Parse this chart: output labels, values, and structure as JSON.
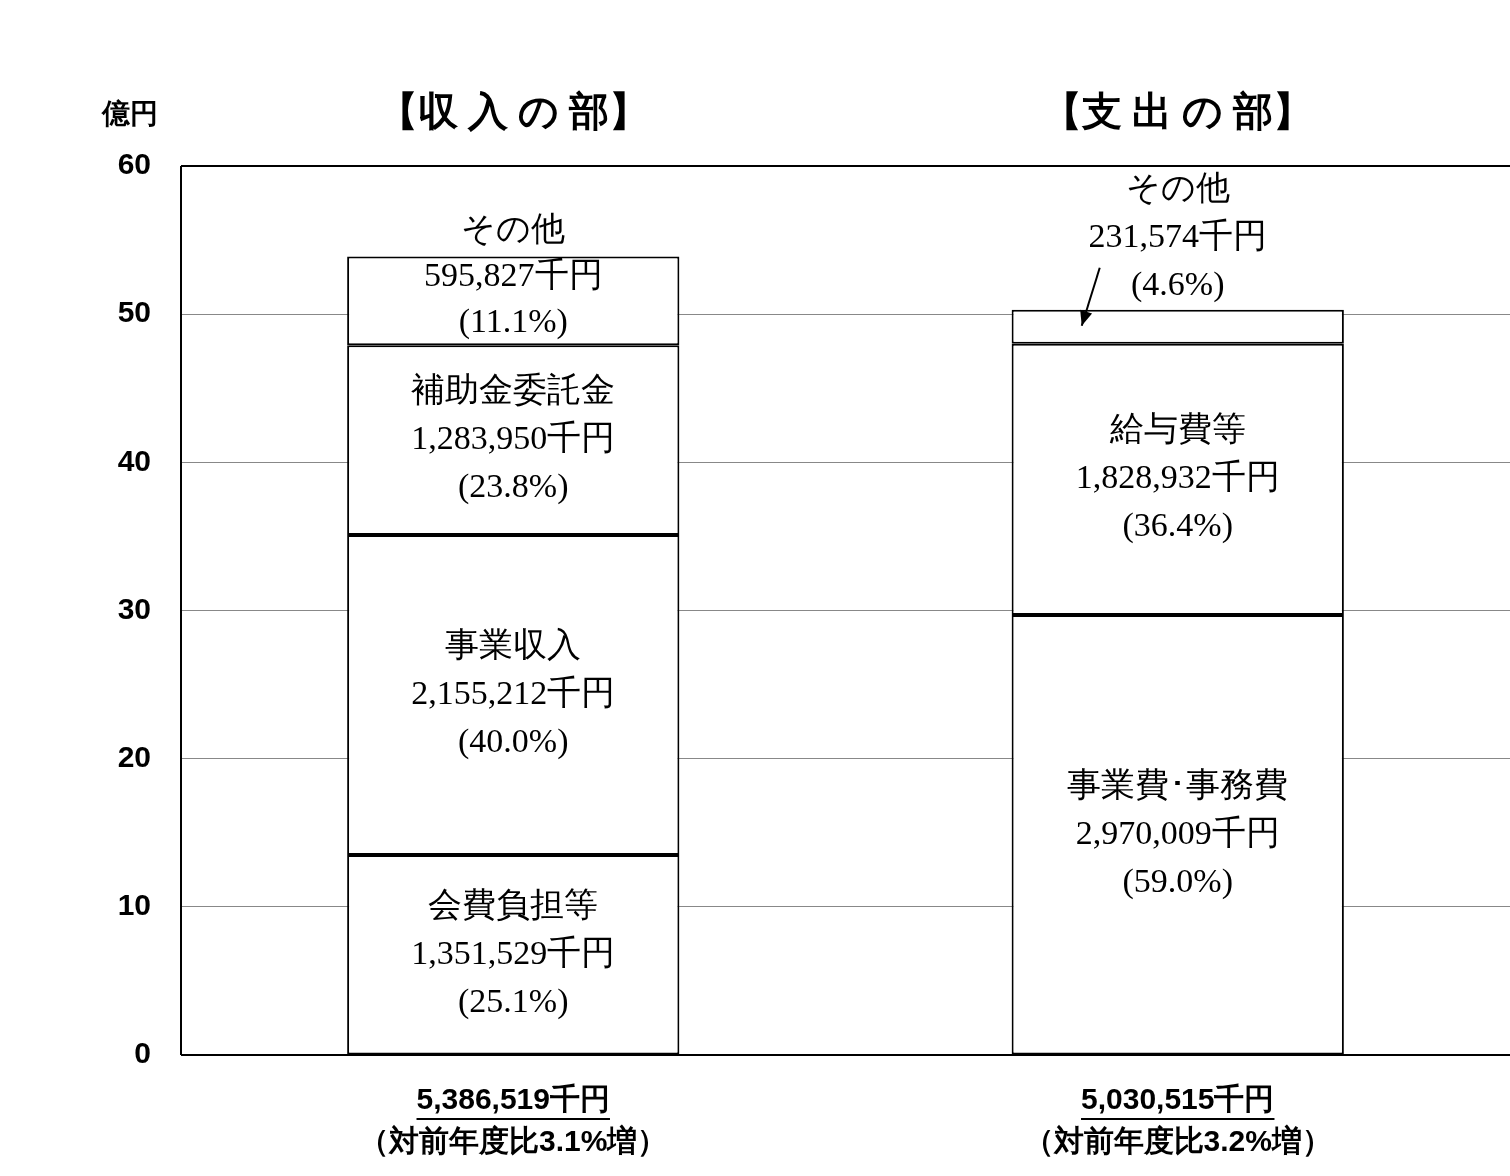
{
  "chart_data": {
    "type": "bar",
    "stacked": true,
    "grid": "y",
    "ylabel": "億円",
    "categories": [
      "【収 入 の 部】",
      "【支 出 の 部】"
    ],
    "ylim": [
      0,
      60
    ],
    "yticks": [
      0,
      10,
      20,
      30,
      40,
      50,
      60
    ],
    "series": [
      {
        "color": "#ffffff",
        "values": [
          13.5,
          29.7
        ]
      },
      {
        "color": "#ffffff",
        "values": [
          21.6,
          18.3
        ]
      },
      {
        "color": "#ffffff",
        "values": [
          12.8,
          2.3
        ]
      },
      {
        "color": "#ffffff",
        "values": [
          6.0,
          null
        ]
      }
    ],
    "annotations": [
      "会費負担等\n1,351,529千円\n(25.1%)",
      "事業収入\n2,155,212千円\n(40.0%)",
      "補助金委託金\n1,283,950千円\n(23.8%)",
      "その他\n595,827千円\n(11.1%)",
      "事業費･事務費\n2,970,009千円\n(59.0%)",
      "給与費等\n1,828,932千円\n(36.4%)",
      "その他\n231,574千円\n(4.6%)",
      "5,386,519千円",
      "（対前年度比3.1%増）",
      "5,030,515千円",
      "（対前年度比3.2%増）"
    ]
  }
}
